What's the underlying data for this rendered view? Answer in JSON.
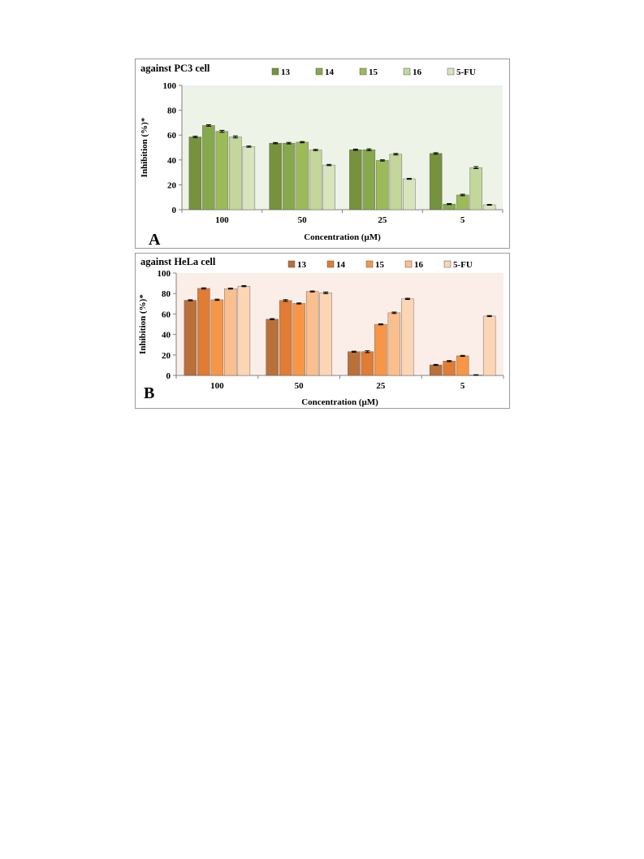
{
  "chart_data": [
    {
      "type": "bar",
      "panel_letter": "A",
      "title": "against PC3 cell",
      "xlabel": "Concentration (μM)",
      "ylabel": "Inhibition (%)*",
      "categories": [
        "100",
        "50",
        "25",
        "5"
      ],
      "ylim": [
        0,
        100
      ],
      "yticks": [
        0,
        20,
        40,
        60,
        80,
        100
      ],
      "legend_position": "top",
      "plot_background": "#eef3e8",
      "series": [
        {
          "name": "13",
          "color": "#76923c",
          "values": [
            58.5,
            53.5,
            48.2,
            45.2
          ],
          "errors": [
            0.6,
            0.5,
            0.5,
            0.6
          ]
        },
        {
          "name": "14",
          "color": "#87a94d",
          "values": [
            67.7,
            53.5,
            48.2,
            4.5
          ],
          "errors": [
            0.6,
            0.6,
            0.7,
            0.4
          ]
        },
        {
          "name": "15",
          "color": "#9bbb59",
          "values": [
            63.0,
            54.3,
            39.6,
            11.8
          ],
          "errors": [
            0.8,
            0.5,
            0.5,
            0.6
          ]
        },
        {
          "name": "16",
          "color": "#c3d69b",
          "values": [
            58.5,
            48.0,
            44.6,
            33.8
          ],
          "errors": [
            0.8,
            0.5,
            0.6,
            0.8
          ]
        },
        {
          "name": "5-FU",
          "color": "#d7e4bd",
          "values": [
            50.7,
            35.9,
            24.8,
            3.9
          ],
          "errors": [
            0.5,
            0.5,
            0.4,
            0.3
          ]
        }
      ]
    },
    {
      "type": "bar",
      "panel_letter": "B",
      "title": "against HeLa cell",
      "xlabel": "Concentration (μM)",
      "ylabel": "Inhibition (%)*",
      "categories": [
        "100",
        "50",
        "25",
        "5"
      ],
      "ylim": [
        0,
        100
      ],
      "yticks": [
        0,
        20,
        40,
        60,
        80,
        100
      ],
      "legend_position": "top",
      "plot_background": "#fbeee9",
      "series": [
        {
          "name": "13",
          "color": "#b9703a",
          "values": [
            73.4,
            55.0,
            23.2,
            10.3
          ],
          "errors": [
            0.5,
            0.5,
            0.5,
            0.5
          ]
        },
        {
          "name": "14",
          "color": "#e07c33",
          "values": [
            85.0,
            73.2,
            23.2,
            14.0
          ],
          "errors": [
            0.6,
            0.8,
            0.9,
            0.5
          ]
        },
        {
          "name": "15",
          "color": "#f79646",
          "values": [
            73.9,
            70.3,
            49.9,
            19.1
          ],
          "errors": [
            0.6,
            0.5,
            0.5,
            0.5
          ]
        },
        {
          "name": "16",
          "color": "#fabf8f",
          "values": [
            84.8,
            82.0,
            61.2,
            0.5
          ],
          "errors": [
            0.5,
            0.5,
            0.7,
            0.2
          ]
        },
        {
          "name": "5-FU",
          "color": "#fcd5b5",
          "values": [
            87.2,
            80.7,
            74.8,
            58.0
          ],
          "errors": [
            0.5,
            0.8,
            0.6,
            0.5
          ]
        }
      ]
    }
  ]
}
